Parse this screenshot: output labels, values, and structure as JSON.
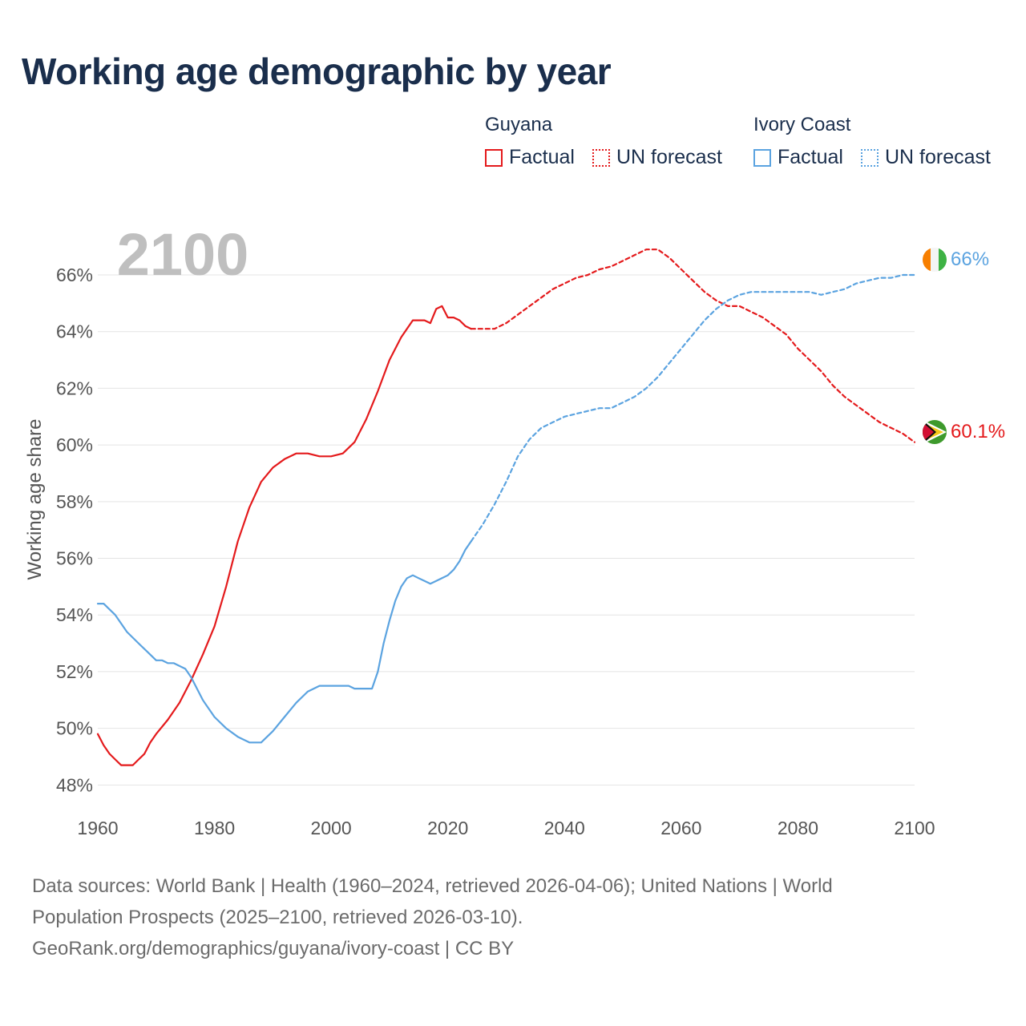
{
  "title": "Working age demographic by year",
  "legend": {
    "groups": [
      {
        "name": "Guyana",
        "color": "#e41a1c",
        "factual_label": "Factual",
        "forecast_label": "UN forecast"
      },
      {
        "name": "Ivory Coast",
        "color": "#5ba3e0",
        "factual_label": "Factual",
        "forecast_label": "UN forecast"
      }
    ]
  },
  "year_label": "2100",
  "end_labels": {
    "guyana": "60.1%",
    "ivory_coast": "66%"
  },
  "flags": {
    "guyana": "guyana-flag-icon",
    "ivory_coast": "ivory-coast-flag-icon"
  },
  "footer": {
    "line1": "Data sources: World Bank | Health (1960–2024, retrieved 2026-04-06); United Nations | World",
    "line2": "Population Prospects (2025–2100, retrieved 2026-03-10).",
    "line3": "GeoRank.org/demographics/guyana/ivory-coast | CC BY"
  },
  "chart_data": {
    "type": "line",
    "title": "Working age demographic by year",
    "xlabel": "",
    "ylabel": "Working age share",
    "xlim": [
      1960,
      2100
    ],
    "ylim": [
      47.5,
      67.5
    ],
    "x_ticks": [
      1960,
      1980,
      2000,
      2020,
      2040,
      2060,
      2080,
      2100
    ],
    "x_tick_labels": [
      "1960",
      "1980",
      "2000",
      "2020",
      "2040",
      "2060",
      "2080",
      "2100"
    ],
    "y_ticks": [
      48,
      50,
      52,
      54,
      56,
      58,
      60,
      62,
      64,
      66
    ],
    "y_tick_labels": [
      "48%",
      "50%",
      "52%",
      "54%",
      "56%",
      "58%",
      "60%",
      "62%",
      "64%",
      "66%"
    ],
    "grid": true,
    "series": [
      {
        "name": "Guyana",
        "segment": "Factual",
        "color": "#e41a1c",
        "dashed": false,
        "x": [
          1960,
          1961,
          1962,
          1963,
          1964,
          1965,
          1966,
          1967,
          1968,
          1969,
          1970,
          1972,
          1974,
          1976,
          1978,
          1980,
          1982,
          1984,
          1986,
          1988,
          1990,
          1992,
          1994,
          1996,
          1998,
          2000,
          2002,
          2004,
          2006,
          2008,
          2010,
          2012,
          2014,
          2016,
          2017,
          2018,
          2019,
          2020,
          2021,
          2022,
          2023,
          2024
        ],
        "y": [
          49.8,
          49.4,
          49.1,
          48.9,
          48.7,
          48.7,
          48.7,
          48.9,
          49.1,
          49.5,
          49.8,
          50.3,
          50.9,
          51.7,
          52.6,
          53.6,
          55.0,
          56.6,
          57.8,
          58.7,
          59.2,
          59.5,
          59.7,
          59.7,
          59.6,
          59.6,
          59.7,
          60.1,
          60.9,
          61.9,
          63.0,
          63.8,
          64.4,
          64.4,
          64.3,
          64.8,
          64.9,
          64.5,
          64.5,
          64.4,
          64.2,
          64.1
        ]
      },
      {
        "name": "Guyana",
        "segment": "UN forecast",
        "color": "#e41a1c",
        "dashed": true,
        "x": [
          2024,
          2026,
          2028,
          2030,
          2032,
          2034,
          2036,
          2038,
          2040,
          2042,
          2044,
          2046,
          2048,
          2050,
          2052,
          2054,
          2056,
          2058,
          2060,
          2062,
          2064,
          2066,
          2068,
          2070,
          2072,
          2074,
          2076,
          2078,
          2080,
          2082,
          2084,
          2086,
          2088,
          2090,
          2092,
          2094,
          2096,
          2098,
          2100
        ],
        "y": [
          64.1,
          64.1,
          64.1,
          64.3,
          64.6,
          64.9,
          65.2,
          65.5,
          65.7,
          65.9,
          66.0,
          66.2,
          66.3,
          66.5,
          66.7,
          66.9,
          66.9,
          66.6,
          66.2,
          65.8,
          65.4,
          65.1,
          64.9,
          64.9,
          64.7,
          64.5,
          64.2,
          63.9,
          63.4,
          63.0,
          62.6,
          62.1,
          61.7,
          61.4,
          61.1,
          60.8,
          60.6,
          60.4,
          60.1
        ]
      },
      {
        "name": "Ivory Coast",
        "segment": "Factual",
        "color": "#5ba3e0",
        "dashed": false,
        "x": [
          1960,
          1961,
          1963,
          1965,
          1967,
          1969,
          1970,
          1971,
          1972,
          1973,
          1975,
          1976,
          1978,
          1980,
          1982,
          1984,
          1986,
          1988,
          1990,
          1992,
          1994,
          1996,
          1998,
          2000,
          2002,
          2003,
          2004,
          2005,
          2006,
          2007,
          2008,
          2009,
          2010,
          2011,
          2012,
          2013,
          2014,
          2015,
          2016,
          2017,
          2018,
          2019,
          2020,
          2021,
          2022,
          2023,
          2024
        ],
        "y": [
          54.4,
          54.4,
          54.0,
          53.4,
          53.0,
          52.6,
          52.4,
          52.4,
          52.3,
          52.3,
          52.1,
          51.8,
          51.0,
          50.4,
          50.0,
          49.7,
          49.5,
          49.5,
          49.9,
          50.4,
          50.9,
          51.3,
          51.5,
          51.5,
          51.5,
          51.5,
          51.4,
          51.4,
          51.4,
          51.4,
          52.0,
          53.0,
          53.8,
          54.5,
          55.0,
          55.3,
          55.4,
          55.3,
          55.2,
          55.1,
          55.2,
          55.3,
          55.4,
          55.6,
          55.9,
          56.3,
          56.6
        ]
      },
      {
        "name": "Ivory Coast",
        "segment": "UN forecast",
        "color": "#5ba3e0",
        "dashed": true,
        "x": [
          2024,
          2026,
          2028,
          2030,
          2032,
          2034,
          2036,
          2038,
          2040,
          2042,
          2044,
          2046,
          2048,
          2050,
          2052,
          2054,
          2056,
          2058,
          2060,
          2062,
          2064,
          2066,
          2068,
          2070,
          2072,
          2074,
          2076,
          2078,
          2080,
          2082,
          2084,
          2086,
          2088,
          2090,
          2092,
          2094,
          2096,
          2098,
          2100
        ],
        "y": [
          56.6,
          57.2,
          57.9,
          58.7,
          59.6,
          60.2,
          60.6,
          60.8,
          61.0,
          61.1,
          61.2,
          61.3,
          61.3,
          61.5,
          61.7,
          62.0,
          62.4,
          62.9,
          63.4,
          63.9,
          64.4,
          64.8,
          65.1,
          65.3,
          65.4,
          65.4,
          65.4,
          65.4,
          65.4,
          65.4,
          65.3,
          65.4,
          65.5,
          65.7,
          65.8,
          65.9,
          65.9,
          66.0,
          66.0
        ]
      }
    ]
  }
}
